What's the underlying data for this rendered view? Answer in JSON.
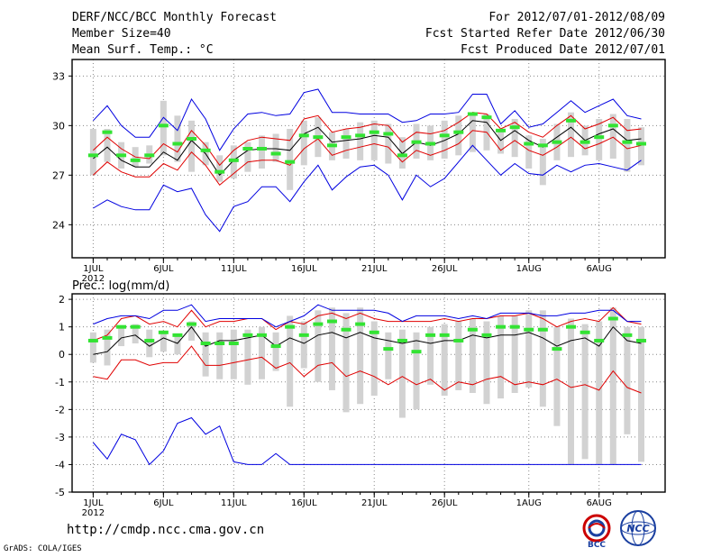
{
  "header": {
    "title": "DERF/NCC/BCC Monthly Forecast",
    "member_size": "Member Size=40",
    "variable": "Mean Surf. Temp.: °C",
    "period": "For 2012/07/01-2012/08/09",
    "refer_date": "Fcst Started Refer Date 2012/06/30",
    "produced_date": "Fcst Produced Date 2012/07/01"
  },
  "footer": {
    "url": "http://cmdp.ncc.cma.gov.cn",
    "credit": "GrADS: COLA/IGES",
    "logo_left_text": "BCC",
    "logo_right_text": "NCC"
  },
  "colors": {
    "ens_mean": "#000000",
    "spread": "#e00000",
    "extreme": "#0000e0",
    "member_bar": "#d2d2d2",
    "median_mark": "#33e333",
    "grid": "#888888"
  },
  "chart_data": [
    {
      "type": "line",
      "title": "Mean Surf. Temp.: °C",
      "xlabel": "",
      "ylabel": "°C",
      "x_tick_labels": [
        "1JUL",
        "6JUL",
        "11JUL",
        "16JUL",
        "21JUL",
        "26JUL",
        "1AUG",
        "6AUG"
      ],
      "x_tick_days": [
        1,
        6,
        11,
        16,
        21,
        26,
        32,
        37
      ],
      "x_sublabel": "2012",
      "ylim": [
        22,
        34
      ],
      "yticks": [
        24,
        27,
        30,
        33
      ],
      "grid": true,
      "days": [
        1,
        2,
        3,
        4,
        5,
        6,
        7,
        8,
        9,
        10,
        11,
        12,
        13,
        14,
        15,
        16,
        17,
        18,
        19,
        20,
        21,
        22,
        23,
        24,
        25,
        26,
        27,
        28,
        29,
        30,
        31,
        32,
        33,
        34,
        35,
        36,
        37,
        38,
        39,
        40
      ],
      "series": [
        {
          "name": "ensemble-mean",
          "values": [
            28.0,
            28.7,
            27.9,
            27.5,
            27.5,
            28.4,
            27.9,
            29.1,
            28.3,
            27.0,
            27.9,
            28.5,
            28.6,
            28.6,
            28.5,
            29.5,
            29.9,
            29.0,
            29.1,
            29.2,
            29.4,
            29.3,
            28.3,
            29.0,
            28.8,
            29.1,
            29.5,
            30.3,
            30.2,
            29.1,
            29.7,
            29.1,
            28.7,
            29.3,
            29.9,
            29.1,
            29.5,
            29.8,
            29.1,
            29.2
          ]
        },
        {
          "name": "upper-spread",
          "values": [
            28.5,
            29.3,
            28.6,
            28.1,
            28.0,
            28.9,
            28.4,
            29.7,
            28.8,
            27.6,
            28.5,
            29.1,
            29.3,
            29.2,
            29.1,
            30.4,
            30.6,
            29.6,
            29.8,
            29.9,
            30.1,
            30.0,
            29.0,
            29.6,
            29.5,
            29.7,
            30.2,
            30.8,
            30.7,
            29.8,
            30.2,
            29.6,
            29.3,
            30.0,
            30.6,
            29.8,
            30.1,
            30.5,
            29.7,
            29.8
          ]
        },
        {
          "name": "lower-spread",
          "values": [
            27.0,
            27.8,
            27.2,
            26.9,
            26.9,
            27.7,
            27.3,
            28.4,
            27.6,
            26.4,
            27.1,
            27.8,
            27.9,
            27.9,
            27.6,
            28.6,
            29.2,
            28.2,
            28.5,
            28.7,
            28.9,
            28.7,
            27.8,
            28.5,
            28.2,
            28.5,
            28.9,
            29.7,
            29.6,
            28.5,
            29.1,
            28.5,
            28.2,
            28.7,
            29.3,
            28.6,
            28.9,
            29.3,
            28.6,
            28.8
          ]
        },
        {
          "name": "maximum",
          "values": [
            30.3,
            31.2,
            30.0,
            29.3,
            29.3,
            30.5,
            29.7,
            31.6,
            30.4,
            28.5,
            29.8,
            30.7,
            30.8,
            30.6,
            30.7,
            32.0,
            32.2,
            30.8,
            30.8,
            30.7,
            30.7,
            30.7,
            30.2,
            30.3,
            30.7,
            30.7,
            30.8,
            31.9,
            31.9,
            30.1,
            30.9,
            29.9,
            30.1,
            30.8,
            31.5,
            30.8,
            31.2,
            31.6,
            30.6,
            30.4
          ]
        },
        {
          "name": "minimum",
          "values": [
            25.0,
            25.5,
            25.1,
            24.9,
            24.9,
            26.4,
            26.0,
            26.2,
            24.6,
            23.6,
            25.1,
            25.4,
            26.3,
            26.3,
            25.4,
            26.6,
            27.6,
            26.1,
            26.9,
            27.5,
            27.6,
            27.0,
            25.5,
            27.0,
            26.3,
            26.8,
            27.8,
            28.8,
            27.9,
            27.0,
            27.7,
            27.1,
            27.0,
            27.6,
            27.2,
            27.6,
            27.7,
            27.5,
            27.3,
            27.9
          ]
        }
      ],
      "bars": {
        "name": "ensemble-range-bars",
        "low": [
          27.0,
          27.8,
          27.4,
          27.5,
          27.7,
          28.2,
          27.8,
          27.2,
          27.6,
          26.6,
          26.8,
          27.2,
          27.4,
          27.8,
          26.1,
          27.6,
          28.1,
          27.9,
          28.0,
          27.9,
          27.9,
          27.7,
          27.4,
          28.0,
          27.9,
          28.0,
          28.2,
          28.4,
          28.5,
          28.3,
          28.1,
          27.4,
          26.4,
          27.9,
          28.1,
          28.2,
          27.9,
          28.0,
          27.2,
          27.6
        ],
        "high": [
          29.8,
          29.8,
          29.0,
          28.7,
          28.8,
          31.5,
          30.6,
          30.3,
          29.0,
          28.2,
          28.8,
          29.0,
          29.4,
          29.5,
          29.8,
          30.3,
          30.5,
          29.6,
          29.8,
          30.2,
          30.3,
          30.1,
          29.3,
          30.1,
          30.0,
          30.3,
          30.6,
          30.8,
          30.7,
          29.8,
          30.4,
          29.4,
          29.2,
          30.1,
          30.8,
          30.0,
          30.4,
          30.7,
          30.4,
          29.9
        ]
      },
      "median_marks": [
        28.2,
        29.6,
        28.2,
        27.9,
        28.2,
        30.0,
        28.9,
        29.2,
        28.5,
        27.2,
        27.9,
        28.6,
        28.6,
        28.3,
        27.8,
        29.4,
        29.3,
        28.8,
        29.3,
        29.4,
        29.6,
        29.5,
        28.2,
        29.0,
        28.9,
        29.4,
        29.6,
        30.7,
        30.5,
        29.7,
        29.9,
        28.9,
        28.8,
        29.0,
        30.3,
        29.0,
        29.3,
        30.0,
        29.0,
        28.9
      ]
    },
    {
      "type": "line",
      "title": "Prec.: log(mm/d)",
      "xlabel": "",
      "ylabel": "log(mm/d)",
      "x_tick_labels": [
        "1JUL",
        "6JUL",
        "11JUL",
        "16JUL",
        "21JUL",
        "26JUL",
        "1AUG",
        "6AUG"
      ],
      "x_tick_days": [
        1,
        6,
        11,
        16,
        21,
        26,
        32,
        37
      ],
      "x_sublabel": "2012",
      "ylim": [
        -5,
        2.2
      ],
      "yticks": [
        -5,
        -4,
        -3,
        -2,
        -1,
        0,
        1,
        2
      ],
      "grid": true,
      "days": [
        1,
        2,
        3,
        4,
        5,
        6,
        7,
        8,
        9,
        10,
        11,
        12,
        13,
        14,
        15,
        16,
        17,
        18,
        19,
        20,
        21,
        22,
        23,
        24,
        25,
        26,
        27,
        28,
        29,
        30,
        31,
        32,
        33,
        34,
        35,
        36,
        37,
        38,
        39,
        40
      ],
      "series": [
        {
          "name": "ensemble-mean",
          "values": [
            0.0,
            0.1,
            0.6,
            0.7,
            0.3,
            0.6,
            0.4,
            1.0,
            0.3,
            0.5,
            0.5,
            0.6,
            0.7,
            0.3,
            0.6,
            0.4,
            0.7,
            0.8,
            0.6,
            0.8,
            0.6,
            0.5,
            0.4,
            0.5,
            0.4,
            0.5,
            0.5,
            0.7,
            0.6,
            0.7,
            0.7,
            0.8,
            0.6,
            0.3,
            0.5,
            0.6,
            0.3,
            1.0,
            0.5,
            0.4
          ]
        },
        {
          "name": "upper-spread",
          "values": [
            0.5,
            0.7,
            1.3,
            1.4,
            1.1,
            1.2,
            1.0,
            1.6,
            1.0,
            1.2,
            1.2,
            1.3,
            1.3,
            0.9,
            1.2,
            1.1,
            1.4,
            1.5,
            1.3,
            1.5,
            1.3,
            1.2,
            1.2,
            1.2,
            1.2,
            1.3,
            1.2,
            1.3,
            1.3,
            1.4,
            1.4,
            1.5,
            1.3,
            1.0,
            1.2,
            1.3,
            1.2,
            1.7,
            1.2,
            1.1
          ]
        },
        {
          "name": "lower-spread",
          "values": [
            -0.8,
            -0.9,
            -0.2,
            -0.2,
            -0.4,
            -0.3,
            -0.3,
            0.3,
            -0.4,
            -0.4,
            -0.3,
            -0.2,
            -0.1,
            -0.5,
            -0.3,
            -0.8,
            -0.4,
            -0.3,
            -0.8,
            -0.6,
            -0.8,
            -1.1,
            -0.8,
            -1.1,
            -0.9,
            -1.3,
            -1.0,
            -1.1,
            -0.9,
            -0.8,
            -1.1,
            -1.0,
            -1.1,
            -0.9,
            -1.2,
            -1.1,
            -1.3,
            -0.6,
            -1.2,
            -1.4
          ]
        },
        {
          "name": "maximum",
          "values": [
            1.1,
            1.3,
            1.4,
            1.4,
            1.3,
            1.6,
            1.6,
            1.8,
            1.2,
            1.3,
            1.3,
            1.3,
            1.3,
            1.0,
            1.2,
            1.4,
            1.8,
            1.6,
            1.6,
            1.6,
            1.6,
            1.5,
            1.2,
            1.4,
            1.4,
            1.4,
            1.3,
            1.4,
            1.3,
            1.5,
            1.5,
            1.5,
            1.4,
            1.4,
            1.5,
            1.5,
            1.6,
            1.6,
            1.2,
            1.2
          ]
        },
        {
          "name": "minimum",
          "values": [
            -3.2,
            -3.8,
            -2.9,
            -3.1,
            -4.0,
            -3.5,
            -2.5,
            -2.3,
            -2.9,
            -2.6,
            -3.9,
            -4.0,
            -4.0,
            -3.6,
            -4.0,
            -4.0,
            -4.0,
            -4.0,
            -4.0,
            -4.0,
            -4.0,
            -4.0,
            -4.0,
            -4.0,
            -4.0,
            -4.0,
            -4.0,
            -4.0,
            -4.0,
            -4.0,
            -4.0,
            -4.0,
            -4.0,
            -4.0,
            -4.0,
            -4.0,
            -4.0,
            -4.0,
            -4.0,
            -4.0
          ]
        }
      ],
      "bars": {
        "name": "ensemble-range-bars",
        "low": [
          -0.3,
          -0.4,
          0.3,
          0.4,
          -0.1,
          0.1,
          0.0,
          0.5,
          -0.8,
          -0.9,
          -0.9,
          -1.1,
          -0.9,
          -0.6,
          -1.9,
          -0.5,
          -1.0,
          -1.3,
          -2.1,
          -1.8,
          -1.5,
          -0.9,
          -2.3,
          -2.0,
          -1.1,
          -1.5,
          -1.3,
          -1.4,
          -1.8,
          -1.6,
          -1.4,
          -1.2,
          -1.9,
          -2.6,
          -4.0,
          -3.8,
          -4.0,
          -4.0,
          -2.9,
          -3.9
        ],
        "high": [
          0.8,
          0.9,
          1.0,
          1.1,
          0.9,
          0.8,
          0.7,
          1.2,
          0.8,
          0.8,
          0.9,
          0.9,
          1.0,
          0.8,
          1.4,
          1.2,
          1.6,
          1.7,
          1.5,
          1.7,
          1.2,
          0.8,
          0.9,
          0.8,
          1.0,
          1.1,
          1.2,
          1.3,
          1.2,
          1.4,
          1.4,
          1.6,
          1.6,
          1.0,
          1.3,
          1.1,
          1.2,
          1.7,
          1.0,
          1.0
        ]
      },
      "median_marks": [
        0.5,
        0.6,
        1.0,
        1.0,
        0.5,
        0.8,
        0.7,
        1.1,
        0.4,
        0.4,
        0.4,
        0.7,
        0.7,
        0.3,
        1.0,
        0.7,
        1.1,
        1.2,
        0.9,
        1.1,
        0.8,
        0.2,
        0.5,
        0.1,
        0.7,
        0.7,
        0.5,
        0.9,
        0.7,
        1.0,
        1.0,
        0.9,
        0.9,
        0.2,
        1.0,
        0.8,
        0.5,
        1.3,
        0.7,
        0.5
      ]
    }
  ]
}
